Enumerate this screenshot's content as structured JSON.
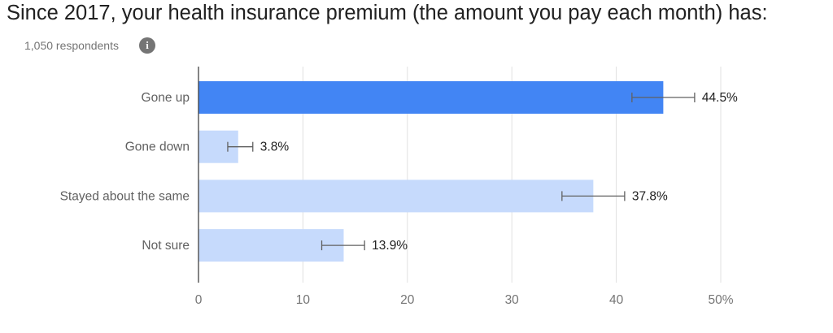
{
  "chart_data": {
    "type": "bar",
    "orientation": "horizontal",
    "title": "Since 2017, your health insurance premium (the amount you pay each month) has:",
    "subtitle": "1,050 respondents",
    "info_icon": "info-icon",
    "categories": [
      "Gone up",
      "Gone down",
      "Stayed about the same",
      "Not sure"
    ],
    "values": [
      44.5,
      3.8,
      37.8,
      13.9
    ],
    "value_labels": [
      "44.5%",
      "3.8%",
      "37.8%",
      "13.9%"
    ],
    "error_bars": [
      {
        "low": 41.5,
        "high": 47.5
      },
      {
        "low": 2.8,
        "high": 5.2
      },
      {
        "low": 34.8,
        "high": 40.8
      },
      {
        "low": 11.8,
        "high": 15.9
      }
    ],
    "highlight_index": 0,
    "colors": {
      "highlight": "#4285f4",
      "default": "#c6dafc",
      "error_bar": "#616161",
      "grid": "#e0e0e0"
    },
    "xlim": [
      0,
      50
    ],
    "xticks": [
      0,
      10,
      20,
      30,
      40,
      50
    ],
    "xtick_labels": [
      "0",
      "10",
      "20",
      "30",
      "40",
      "50%"
    ],
    "grid": true,
    "xlabel": "",
    "ylabel": ""
  }
}
